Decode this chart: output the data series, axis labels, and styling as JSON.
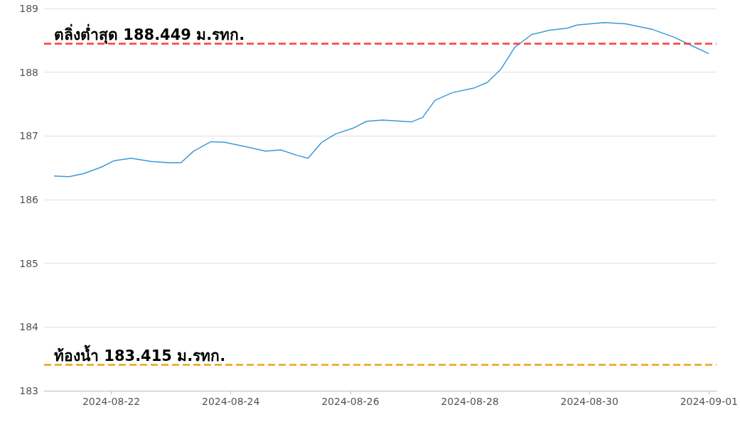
{
  "chart_data": {
    "type": "line",
    "x": [
      "2024-08-21T01:00",
      "2024-08-21T07:00",
      "2024-08-21T13:00",
      "2024-08-21T20:00",
      "2024-08-22T01:00",
      "2024-08-22T08:00",
      "2024-08-22T16:00",
      "2024-08-22T23:00",
      "2024-08-23T04:00",
      "2024-08-23T09:00",
      "2024-08-23T16:00",
      "2024-08-23T21:30",
      "2024-08-24T06:00",
      "2024-08-24T14:00",
      "2024-08-24T20:00",
      "2024-08-25T03:00",
      "2024-08-25T07:00",
      "2024-08-25T12:30",
      "2024-08-25T18:00",
      "2024-08-26T01:00",
      "2024-08-26T06:30",
      "2024-08-26T13:00",
      "2024-08-27T00:30",
      "2024-08-27T05:00",
      "2024-08-27T10:00",
      "2024-08-27T17:00",
      "2024-08-28T01:30",
      "2024-08-28T07:00",
      "2024-08-28T12:30",
      "2024-08-28T18:00",
      "2024-08-29T00:45",
      "2024-08-29T08:00",
      "2024-08-29T15:00",
      "2024-08-29T19:00",
      "2024-08-30T06:00",
      "2024-08-30T14:30",
      "2024-08-31T01:30",
      "2024-08-31T10:00",
      "2024-08-31T18:00",
      "2024-09-01T00:00"
    ],
    "series": [
      {
        "color": "#3a9ad9",
        "values": [
          186.37,
          186.36,
          186.41,
          186.51,
          186.61,
          186.65,
          186.6,
          186.58,
          186.58,
          186.76,
          186.91,
          186.9,
          186.83,
          186.76,
          186.78,
          186.69,
          186.65,
          186.9,
          187.03,
          187.12,
          187.23,
          187.25,
          187.22,
          187.29,
          187.56,
          187.68,
          187.75,
          187.84,
          188.05,
          188.39,
          188.59,
          188.66,
          188.69,
          188.74,
          188.78,
          188.76,
          188.67,
          188.55,
          188.4,
          188.29
        ]
      }
    ],
    "xlim": [
      "2024-08-20T21:00",
      "2024-09-01T03:00"
    ],
    "xticks": [
      "2024-08-22",
      "2024-08-24",
      "2024-08-26",
      "2024-08-28",
      "2024-08-30",
      "2024-09-01"
    ],
    "ylim": [
      183,
      189
    ],
    "yticks": [
      183,
      184,
      185,
      186,
      187,
      188,
      189
    ],
    "grid": "y",
    "marker": "none",
    "ref_lines": [
      {
        "axis": "y",
        "value": 188.449,
        "label": "ตลิ่งต่ำสุด 188.449 ม.รทก.",
        "color": "#ff3b3b",
        "line_style": "dashed"
      },
      {
        "axis": "y",
        "value": 183.415,
        "label": "ท้องน้ำ 183.415 ม.รทก.",
        "color": "#f0a020",
        "line_style": "dashed"
      }
    ]
  }
}
